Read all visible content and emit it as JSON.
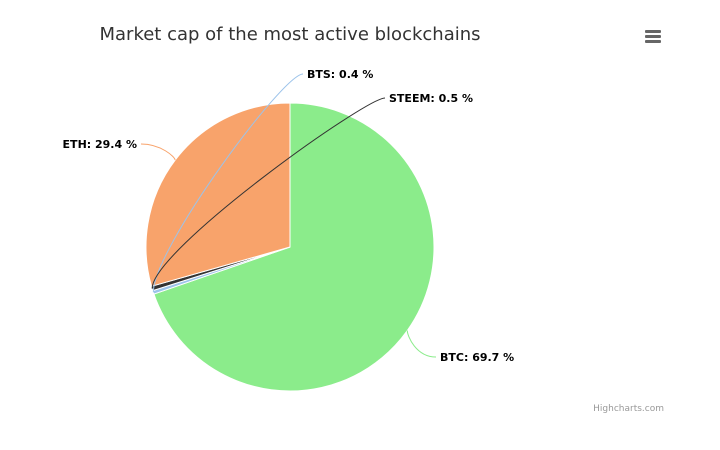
{
  "chart_data": {
    "type": "pie",
    "title": "Market cap of the most active blockchains",
    "series": [
      {
        "name": "BTC",
        "value": 69.7,
        "label": "BTC: 69.7 %",
        "color": "#8bec8b"
      },
      {
        "name": "BTS",
        "value": 0.4,
        "label": "BTS: 0.4 %",
        "color": "#9cc3ea"
      },
      {
        "name": "STEEM",
        "value": 0.5,
        "label": "STEEM: 0.5 %",
        "color": "#333333"
      },
      {
        "name": "ETH",
        "value": 29.4,
        "label": "ETH: 29.4 %",
        "color": "#f8a36b"
      }
    ]
  },
  "menu": {
    "icon": "hamburger-menu-icon"
  },
  "credits": "Highcharts.com"
}
